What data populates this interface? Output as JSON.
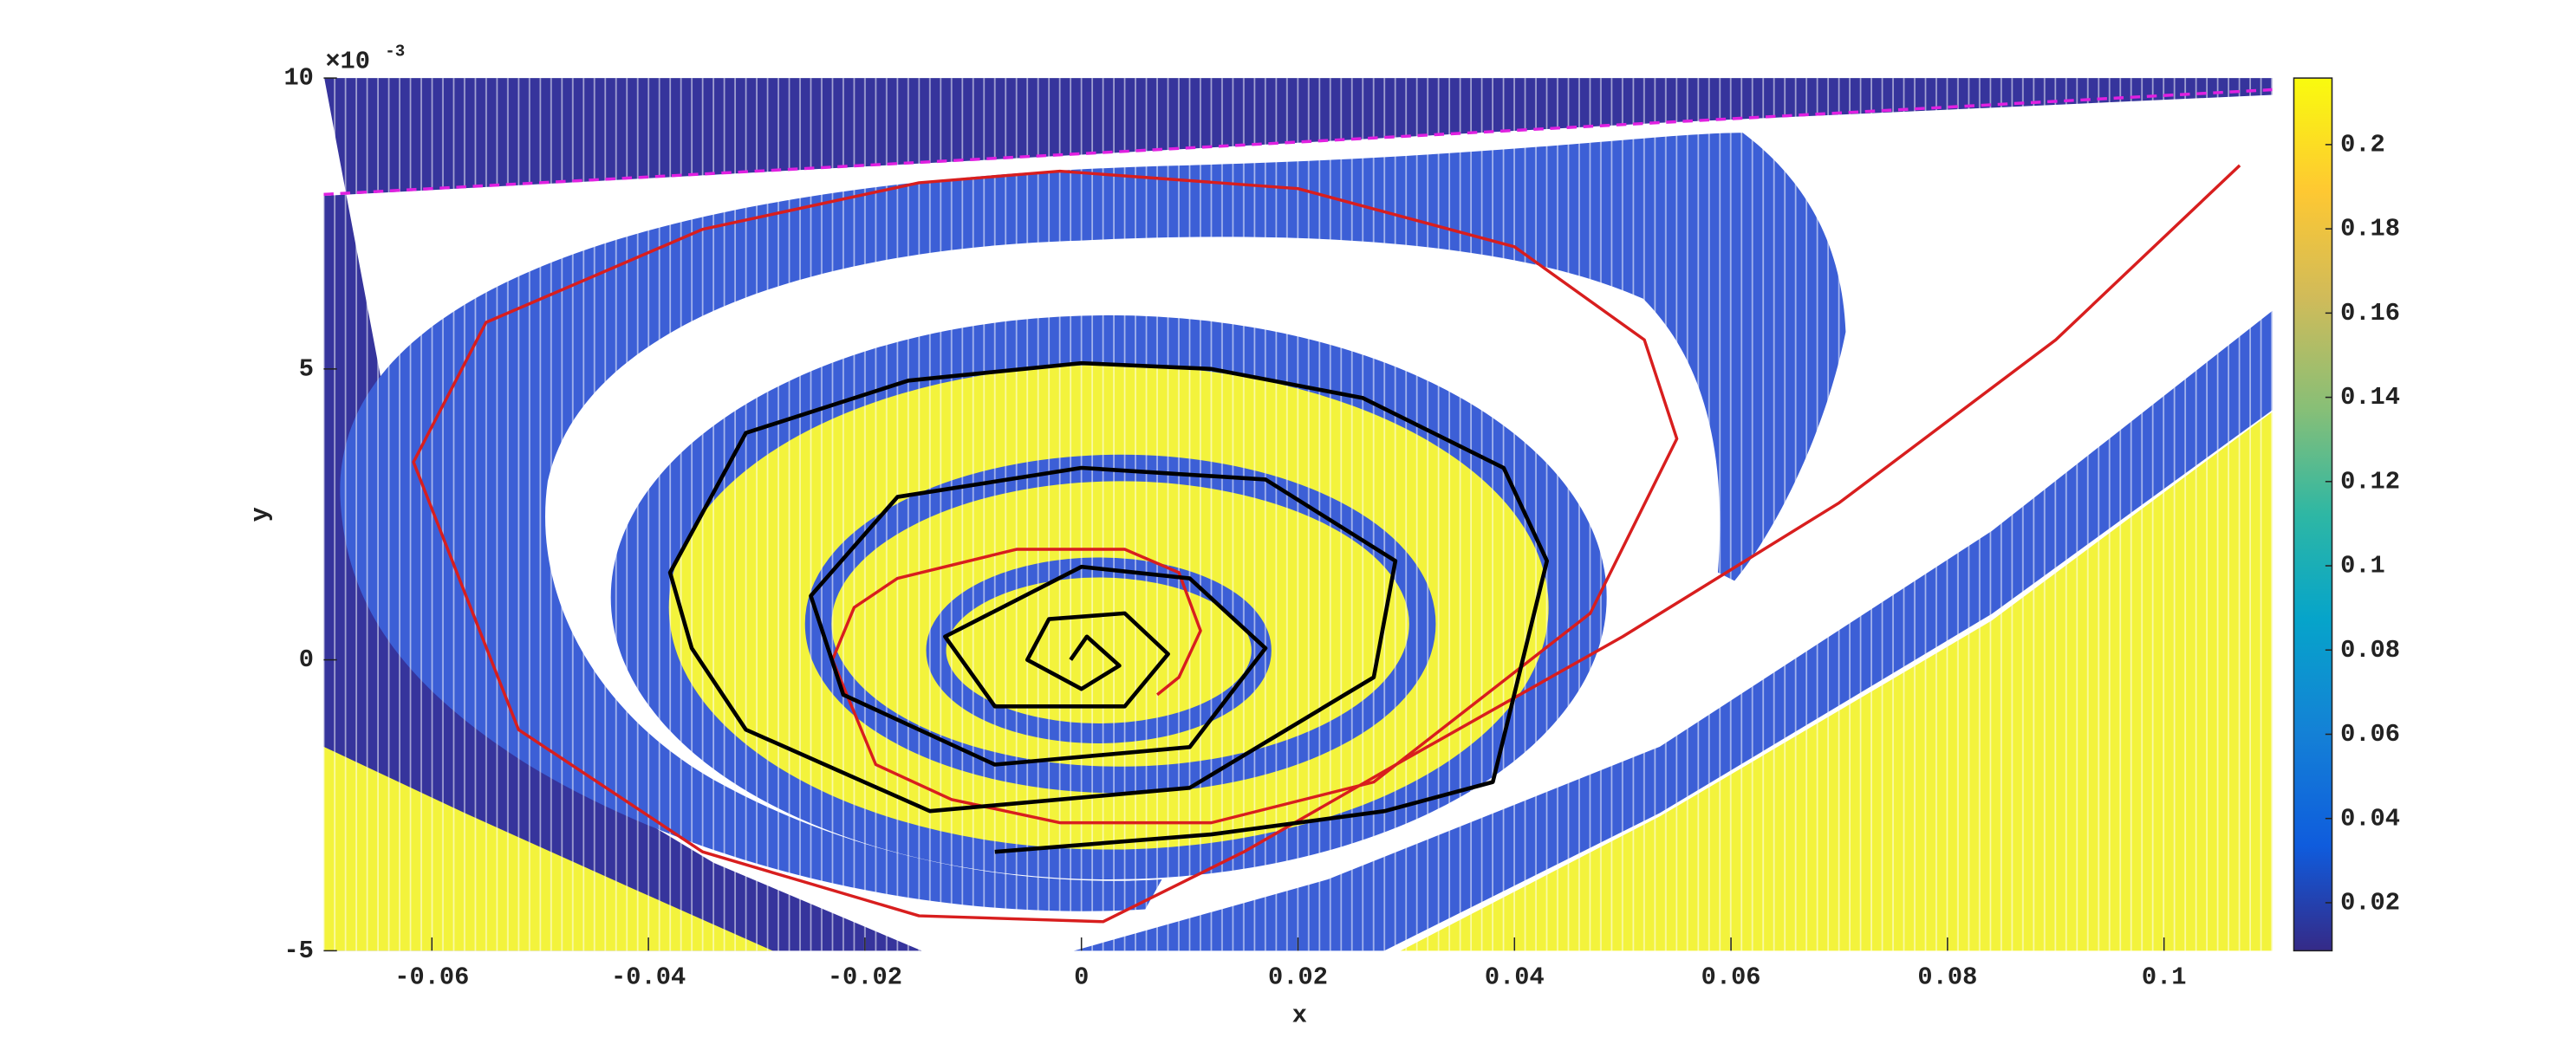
{
  "chart_data": {
    "type": "line",
    "x_label": "x",
    "y_label": "y",
    "y_multiplier": "×10",
    "y_exponent": "-3",
    "xlim": [
      -0.07,
      0.11
    ],
    "ylim": [
      -0.005,
      0.01
    ],
    "xticks": [
      -0.06,
      -0.04,
      -0.02,
      0,
      0.02,
      0.04,
      0.06,
      0.08,
      0.1
    ],
    "yticks": [
      {
        "value": -0.005,
        "label": "-5"
      },
      0,
      {
        "value": 0.005,
        "label": "5"
      },
      {
        "value": 0.01,
        "label": "10"
      }
    ],
    "clim": [
      0.0086,
      0.2158
    ],
    "cticks": [
      0.02,
      0.04,
      0.06,
      0.08,
      0.1,
      0.12,
      0.14,
      0.16,
      0.18,
      0.2
    ],
    "series": [
      {
        "color": "#e020e0",
        "style": "dashed",
        "x": [
          -0.07,
          -0.04,
          -0.01,
          0.02,
          0.05,
          0.08,
          0.11
        ],
        "y": [
          0.008,
          0.0083,
          0.0086,
          0.0089,
          0.0092,
          0.0095,
          0.0098
        ]
      },
      {
        "color": "#d81e1e",
        "style": "solid",
        "x": [
          0.107,
          0.09,
          0.07,
          0.05,
          0.03,
          0.015,
          0.002,
          -0.015,
          -0.035,
          -0.052,
          -0.0617,
          -0.055,
          -0.035,
          -0.015,
          -0.002,
          0.02,
          0.04,
          0.052,
          0.055,
          0.047,
          0.027,
          0.012,
          -0.002,
          -0.012,
          -0.019,
          -0.023,
          -0.021,
          -0.017,
          -0.006,
          0.004,
          0.009,
          0.011,
          0.009,
          0.007
        ],
        "y": [
          0.0085,
          0.0055,
          0.0027,
          0.0004,
          -0.0017,
          -0.0033,
          -0.0045,
          -0.0044,
          -0.0033,
          -0.0012,
          0.0034,
          0.0058,
          0.0074,
          0.0082,
          0.0084,
          0.0081,
          0.0071,
          0.0055,
          0.0038,
          0.0008,
          -0.0021,
          -0.0028,
          -0.0028,
          -0.0024,
          -0.0018,
          0,
          0.0009,
          0.0014,
          0.0019,
          0.0019,
          0.0015,
          0.0005,
          -0.0003,
          -0.0006
        ]
      },
      {
        "color": "#000000",
        "style": "solid",
        "x": [
          -0.008,
          0.012,
          0.028,
          0.038,
          0.043,
          0.039,
          0.026,
          0.012,
          0,
          -0.016,
          -0.031,
          -0.038,
          -0.036,
          -0.031,
          -0.014,
          0.01,
          0.027,
          0.029,
          0.017,
          0,
          -0.017,
          -0.025,
          -0.022,
          -0.008,
          0.01,
          0.017,
          0.01,
          0,
          -0.0126,
          -0.008,
          0.004,
          0.008,
          0.004,
          -0.003,
          -0.005,
          0,
          0.0035,
          0.0005,
          -0.001
        ],
        "y": [
          -0.0033,
          -0.003,
          -0.0026,
          -0.0021,
          0.0017,
          0.0033,
          0.0045,
          0.005,
          0.0051,
          0.0048,
          0.0039,
          0.0015,
          0.0002,
          -0.0012,
          -0.0026,
          -0.0022,
          -0.0003,
          0.0017,
          0.0031,
          0.0033,
          0.0028,
          0.0011,
          -0.0006,
          -0.0018,
          -0.0015,
          0.0002,
          0.0014,
          0.0016,
          0.0004,
          -0.0008,
          -0.0008,
          0.0001,
          0.0008,
          0.0007,
          0,
          -0.0005,
          -0.0001,
          0.0004,
          0
        ]
      }
    ]
  }
}
